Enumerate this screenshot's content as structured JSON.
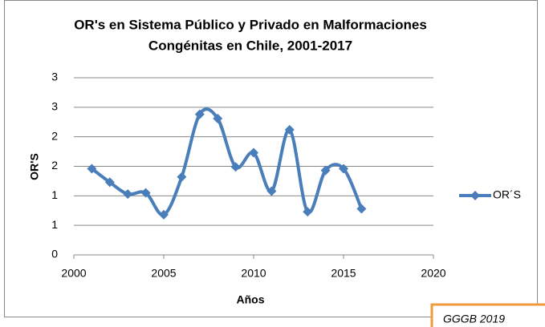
{
  "chart_data": {
    "type": "line",
    "title": [
      "OR's  en Sistema Público y Privado en Malformaciones",
      "Congénitas en Chile, 2001-2017"
    ],
    "x_label": "Años",
    "y_label": "OR'S",
    "x": [
      2001,
      2002,
      2003,
      2004,
      2005,
      2006,
      2007,
      2008,
      2009,
      2010,
      2011,
      2012,
      2013,
      2014,
      2015,
      2016
    ],
    "series": [
      {
        "name": "OR´S",
        "color": "#4a7ebb",
        "values": [
          1.46,
          1.23,
          1.03,
          1.05,
          0.68,
          1.32,
          2.38,
          2.31,
          1.49,
          1.73,
          1.08,
          2.12,
          0.73,
          1.43,
          1.46,
          0.78
        ]
      }
    ],
    "xlim": [
      2000,
      2020
    ],
    "xticks": [
      2000,
      2005,
      2010,
      2015,
      2020
    ],
    "ylim": [
      0,
      3
    ],
    "yticks": [
      0,
      {
        "value": 0.5,
        "label": "1"
      },
      1,
      {
        "value": 1.5,
        "label": "2"
      },
      2,
      {
        "value": 2.5,
        "label": "3"
      },
      3
    ],
    "grid": true,
    "smooth": true,
    "legend": "right",
    "annotation": "GGGB 2019"
  }
}
